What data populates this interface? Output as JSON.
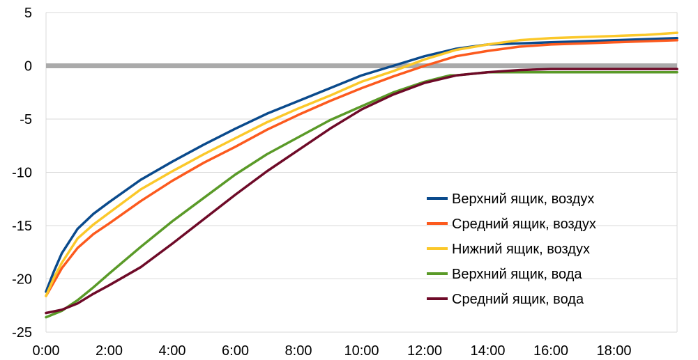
{
  "chart_data": {
    "type": "line",
    "title": "",
    "xlabel": "",
    "ylabel": "",
    "xlim": [
      0,
      20
    ],
    "ylim": [
      -25,
      5
    ],
    "x_ticks": [
      "0:00",
      "2:00",
      "4:00",
      "6:00",
      "8:00",
      "10:00",
      "12:00",
      "14:00",
      "16:00",
      "18:00"
    ],
    "x_tick_values": [
      0,
      2,
      4,
      6,
      8,
      10,
      12,
      14,
      16,
      18
    ],
    "y_ticks": [
      "5",
      "0",
      "-5",
      "-10",
      "-15",
      "-20",
      "-25"
    ],
    "y_tick_values": [
      5,
      0,
      -5,
      -10,
      -15,
      -20,
      -25
    ],
    "grid": "horizontal",
    "reference_line": {
      "y": 0,
      "color": "#aaaaaa"
    },
    "legend_position": "right",
    "x_unit": "hours",
    "series": [
      {
        "name": "Верхний ящик, воздух",
        "color": "#0a4a8c",
        "x": [
          0,
          0.25,
          0.5,
          1,
          1.5,
          2,
          3,
          4,
          5,
          6,
          7,
          8,
          9,
          10,
          11,
          12,
          13,
          14,
          15,
          16,
          17,
          18,
          19,
          20
        ],
        "y": [
          -21.2,
          -19.3,
          -17.6,
          -15.3,
          -13.9,
          -12.8,
          -10.7,
          -9.0,
          -7.4,
          -5.9,
          -4.5,
          -3.3,
          -2.1,
          -0.9,
          0.0,
          0.9,
          1.6,
          2.0,
          2.1,
          2.2,
          2.3,
          2.4,
          2.5,
          2.6
        ]
      },
      {
        "name": "Средний ящик, воздух",
        "color": "#fc5a1e",
        "x": [
          0,
          0.25,
          0.5,
          1,
          1.5,
          2,
          3,
          4,
          5,
          6,
          7,
          8,
          9,
          10,
          11,
          12,
          13,
          14,
          15,
          16,
          17,
          18,
          19,
          20
        ],
        "y": [
          -21.6,
          -20.3,
          -19.0,
          -17.1,
          -15.8,
          -14.8,
          -12.7,
          -10.8,
          -9.1,
          -7.6,
          -6.0,
          -4.6,
          -3.3,
          -2.1,
          -1.0,
          0.0,
          0.9,
          1.4,
          1.8,
          2.0,
          2.1,
          2.2,
          2.3,
          2.4
        ]
      },
      {
        "name": "Нижний ящик, воздух",
        "color": "#fbc82a",
        "x": [
          0,
          0.25,
          0.5,
          1,
          1.5,
          2,
          3,
          4,
          5,
          6,
          7,
          8,
          9,
          10,
          11,
          12,
          13,
          14,
          15,
          16,
          17,
          18,
          19,
          20
        ],
        "y": [
          -21.6,
          -19.9,
          -18.5,
          -16.2,
          -14.9,
          -13.8,
          -11.6,
          -9.9,
          -8.3,
          -6.8,
          -5.3,
          -4.0,
          -2.8,
          -1.5,
          -0.5,
          0.6,
          1.5,
          2.0,
          2.4,
          2.6,
          2.7,
          2.8,
          2.9,
          3.1
        ]
      },
      {
        "name": "Верхний ящик, вода",
        "color": "#5a9a28",
        "x": [
          0,
          0.5,
          1,
          1.5,
          2,
          3,
          4,
          5,
          6,
          7,
          8,
          9,
          10,
          11,
          12,
          12.8,
          13,
          14,
          15,
          16,
          17,
          18,
          19,
          20
        ],
        "y": [
          -23.6,
          -23.0,
          -22.0,
          -20.8,
          -19.5,
          -17.0,
          -14.6,
          -12.4,
          -10.2,
          -8.3,
          -6.7,
          -5.1,
          -3.8,
          -2.5,
          -1.5,
          -0.9,
          -0.9,
          -0.6,
          -0.6,
          -0.6,
          -0.6,
          -0.6,
          -0.6,
          -0.6
        ]
      },
      {
        "name": "Средний ящик, вода",
        "color": "#6e0a28",
        "x": [
          0,
          0.5,
          1,
          1.5,
          2,
          3,
          4,
          5,
          6,
          7,
          8,
          9,
          10,
          11,
          12,
          13,
          14,
          15,
          16,
          17,
          18,
          19,
          20
        ],
        "y": [
          -23.2,
          -22.9,
          -22.3,
          -21.4,
          -20.6,
          -18.9,
          -16.7,
          -14.4,
          -12.1,
          -9.9,
          -7.9,
          -5.9,
          -4.1,
          -2.7,
          -1.6,
          -0.9,
          -0.6,
          -0.4,
          -0.3,
          -0.3,
          -0.3,
          -0.3,
          -0.3
        ]
      }
    ]
  }
}
